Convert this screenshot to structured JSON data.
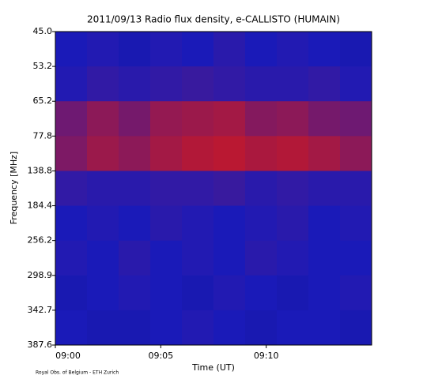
{
  "chart_data": {
    "type": "spectrogram",
    "title": "2011/09/13  Radio flux density, e-CALLISTO (HUMAIN)",
    "x_label": "Time (UT)",
    "y_label": "Frequency [MHz]",
    "credit": "Royal Obs. of Belgium - ETH Zurich",
    "xlim": [
      "09:00",
      "09:15"
    ],
    "xticks": [
      "09:00",
      "09:05",
      "09:10"
    ],
    "yticks": [
      {
        "value": 45,
        "label": "45.0"
      },
      53.2,
      65.2,
      77.8,
      138.8,
      184.4,
      256.2,
      298.9,
      342.7,
      387.6
    ],
    "colormap": [
      "#000000",
      "#1a1ab8",
      "#d81818",
      "#ffd800",
      "#ffffff"
    ],
    "zlim": [
      0,
      100
    ],
    "z": [
      [
        25,
        26,
        24,
        26,
        25,
        27,
        25,
        26,
        25,
        24
      ],
      [
        26,
        28,
        27,
        28,
        29,
        28,
        27,
        27,
        28,
        26
      ],
      [
        36,
        40,
        37,
        41,
        42,
        43,
        39,
        40,
        37,
        36
      ],
      [
        38,
        42,
        40,
        43,
        45,
        46,
        44,
        45,
        43,
        40
      ],
      [
        28,
        27,
        27,
        28,
        28,
        29,
        27,
        28,
        27,
        27
      ],
      [
        25,
        26,
        25,
        27,
        26,
        25,
        26,
        27,
        25,
        26
      ],
      [
        26,
        25,
        27,
        25,
        26,
        25,
        27,
        26,
        25,
        25
      ],
      [
        24,
        25,
        26,
        25,
        24,
        26,
        25,
        24,
        25,
        26
      ],
      [
        25,
        24,
        24,
        25,
        26,
        25,
        24,
        25,
        25,
        24
      ]
    ]
  }
}
